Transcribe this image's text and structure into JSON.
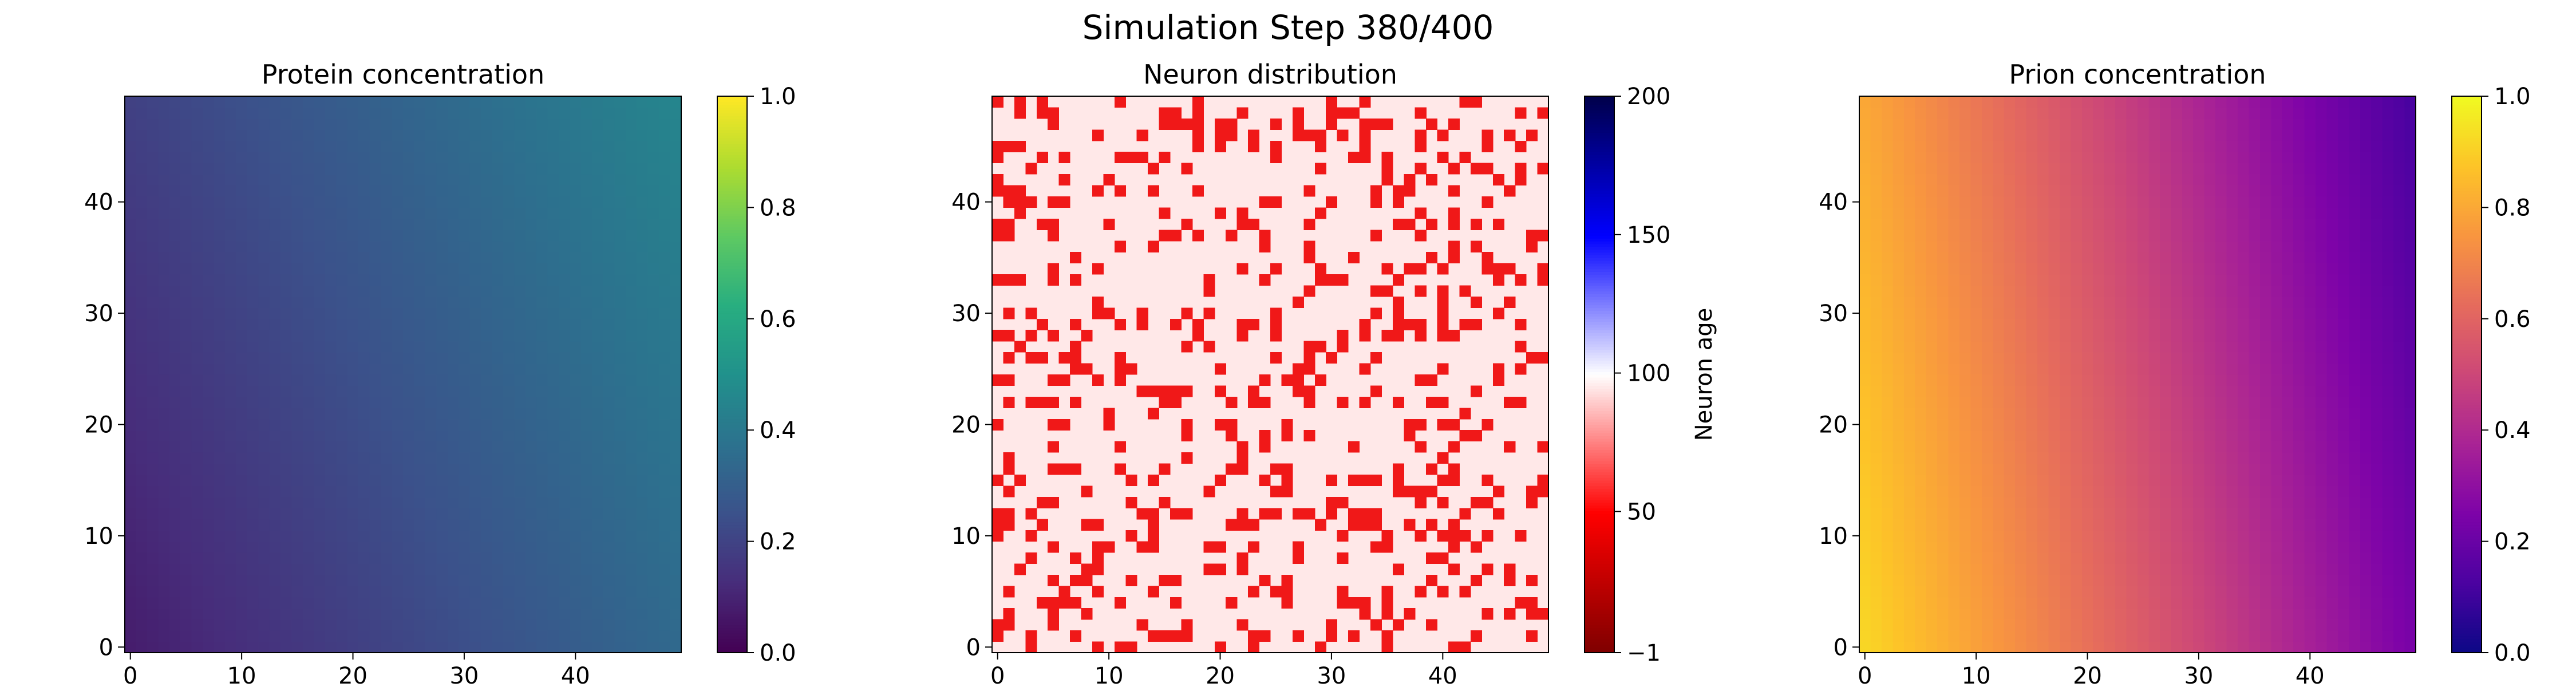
{
  "figure": {
    "title": "Simulation Step 380/400"
  },
  "chart_data": [
    {
      "type": "heatmap",
      "title": "Protein concentration",
      "xlabel": "",
      "ylabel": "",
      "grid_size": [
        50,
        50
      ],
      "x_ticks": [
        "0",
        "10",
        "20",
        "30",
        "40"
      ],
      "y_ticks": [
        "0",
        "10",
        "20",
        "30",
        "40"
      ],
      "xlim": [
        0,
        49
      ],
      "ylim": [
        0,
        49
      ],
      "colormap": "viridis",
      "colorbar": {
        "min": 0.0,
        "max": 1.0,
        "ticks": [
          "0.0",
          "0.2",
          "0.4",
          "0.6",
          "0.8",
          "1.0"
        ],
        "label": ""
      },
      "field": {
        "form": "linear",
        "value_at_origin": 0.08,
        "value_at_far_corner": 0.45,
        "x_weight": 0.7,
        "y_weight": 0.3
      }
    },
    {
      "type": "heatmap",
      "title": "Neuron distribution",
      "xlabel": "",
      "ylabel": "",
      "grid_size": [
        50,
        50
      ],
      "x_ticks": [
        "0",
        "10",
        "20",
        "30",
        "40"
      ],
      "y_ticks": [
        "0",
        "10",
        "20",
        "30",
        "40"
      ],
      "xlim": [
        0,
        49
      ],
      "ylim": [
        0,
        49
      ],
      "colormap": "seismic_r",
      "colorbar": {
        "min": -1,
        "max": 200,
        "ticks": [
          "−1",
          "50",
          "100",
          "150",
          "200"
        ],
        "label": "Neuron age"
      },
      "cell_values": {
        "empty": -1,
        "neuron": 0
      },
      "neuron_density": 0.22
    },
    {
      "type": "heatmap",
      "title": "Prion concentration",
      "xlabel": "",
      "ylabel": "",
      "grid_size": [
        50,
        50
      ],
      "x_ticks": [
        "0",
        "10",
        "20",
        "30",
        "40"
      ],
      "y_ticks": [
        "0",
        "10",
        "20",
        "30",
        "40"
      ],
      "xlim": [
        0,
        49
      ],
      "ylim": [
        0,
        49
      ],
      "colormap": "plasma",
      "colorbar": {
        "min": 0.0,
        "max": 1.0,
        "ticks": [
          "0.0",
          "0.2",
          "0.4",
          "0.6",
          "0.8",
          "1.0"
        ],
        "label": ""
      },
      "field": {
        "form": "linear",
        "value_at_origin": 0.92,
        "value_at_far_corner": 0.12,
        "x_weight": 0.85,
        "y_weight": 0.15
      }
    }
  ]
}
